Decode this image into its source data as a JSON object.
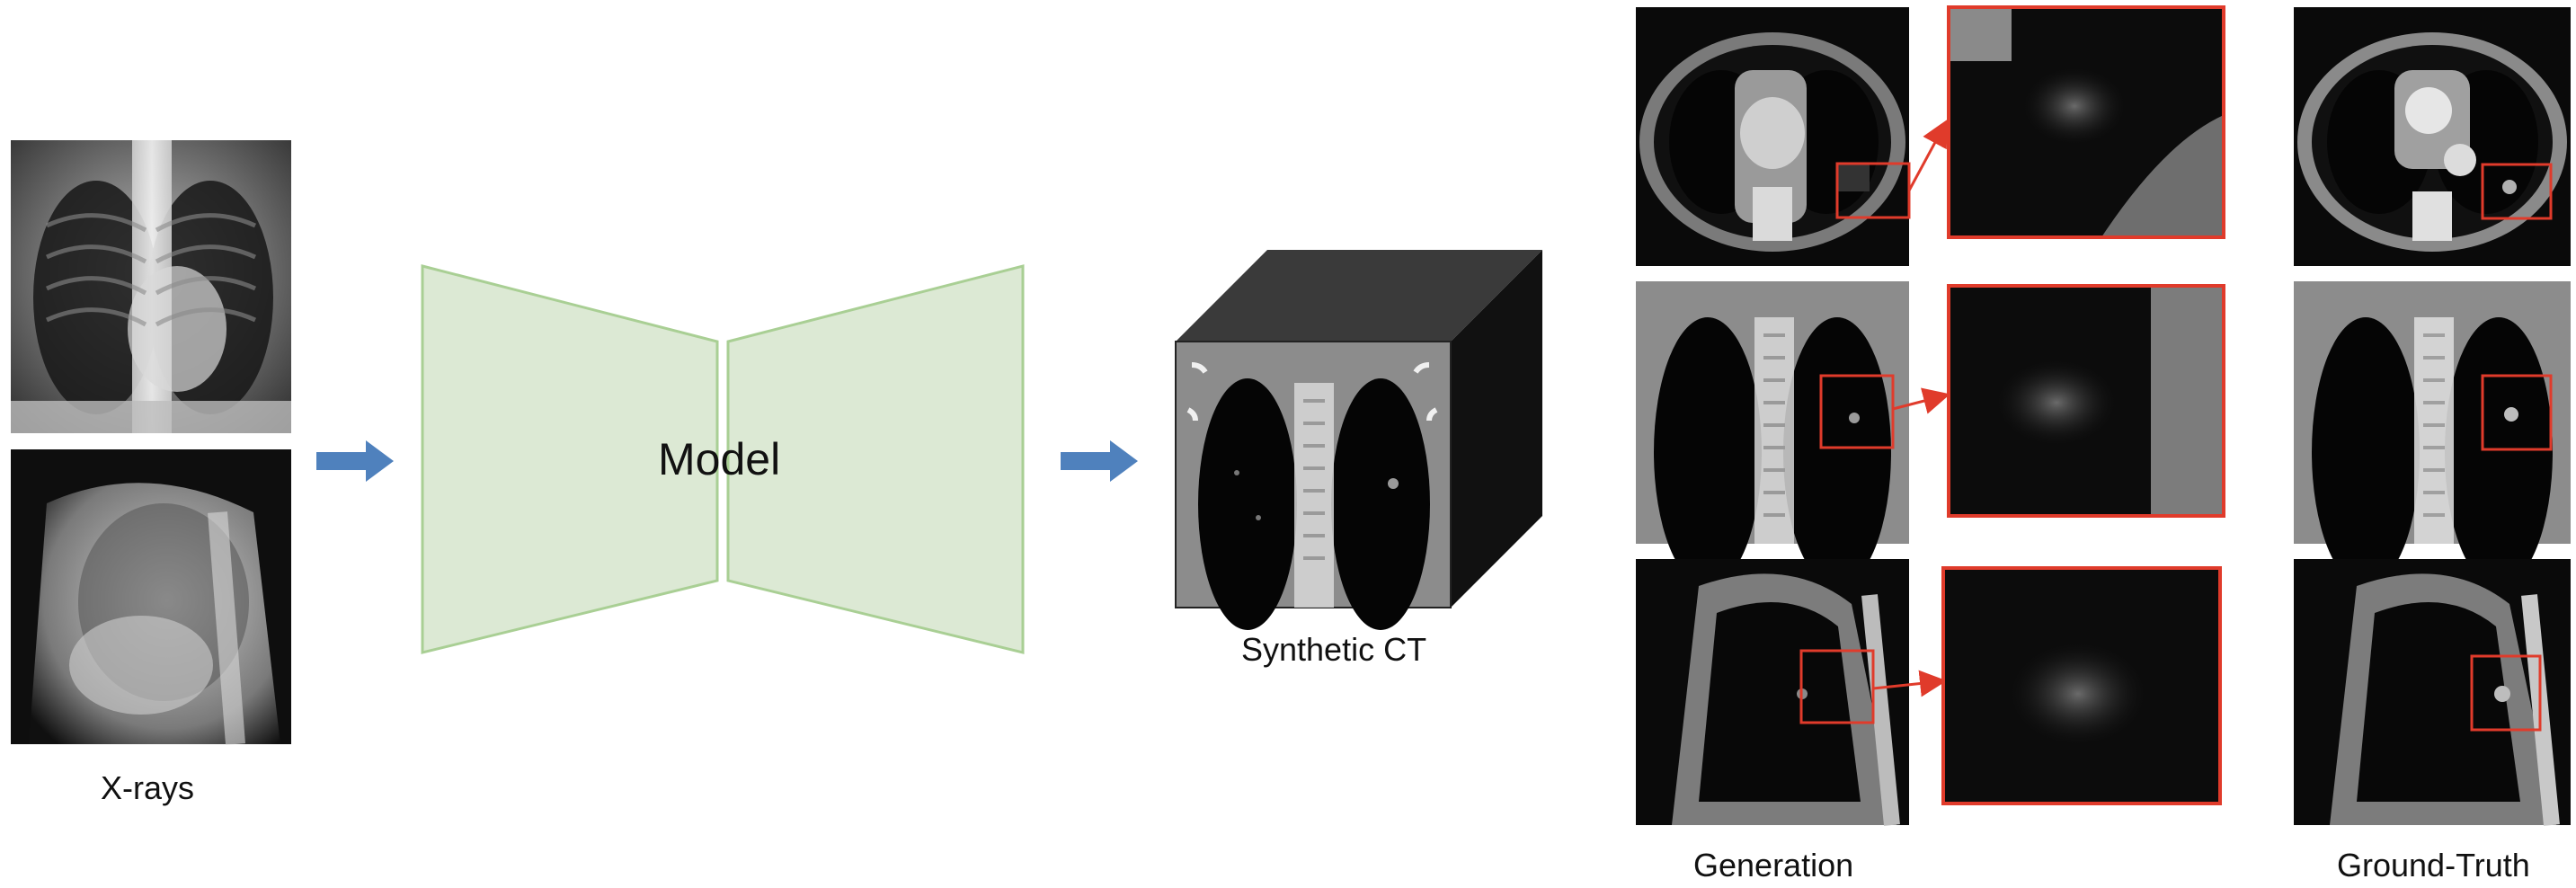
{
  "labels": {
    "xrays": "X-rays",
    "model": "Model",
    "synthetic_ct": "Synthetic CT",
    "generation": "Generation",
    "ground_truth": "Ground-Truth"
  },
  "colors": {
    "arrow_blue": "#4f81bd",
    "model_fill": "#dce9d4",
    "model_stroke": "#a9cf94",
    "highlight_red": "#e03b2b",
    "cube_top": "#3a3a3a",
    "cube_side": "#111111"
  },
  "images": [
    {
      "name": "xray-frontal-image",
      "kind": "xray-frontal"
    },
    {
      "name": "xray-lateral-image",
      "kind": "xray-lateral"
    },
    {
      "name": "synthetic-ct-coronal-image",
      "kind": "ct-coronal"
    },
    {
      "name": "generation-axial-image",
      "kind": "ct-axial"
    },
    {
      "name": "generation-coronal-image",
      "kind": "ct-coronal"
    },
    {
      "name": "generation-sagittal-image",
      "kind": "ct-sagittal"
    },
    {
      "name": "zoom-axial-image",
      "kind": "zoom"
    },
    {
      "name": "zoom-coronal-image",
      "kind": "zoom"
    },
    {
      "name": "zoom-sagittal-image",
      "kind": "zoom"
    },
    {
      "name": "ground-truth-axial-image",
      "kind": "ct-axial"
    },
    {
      "name": "ground-truth-coronal-image",
      "kind": "ct-coronal"
    },
    {
      "name": "ground-truth-sagittal-image",
      "kind": "ct-sagittal"
    }
  ]
}
